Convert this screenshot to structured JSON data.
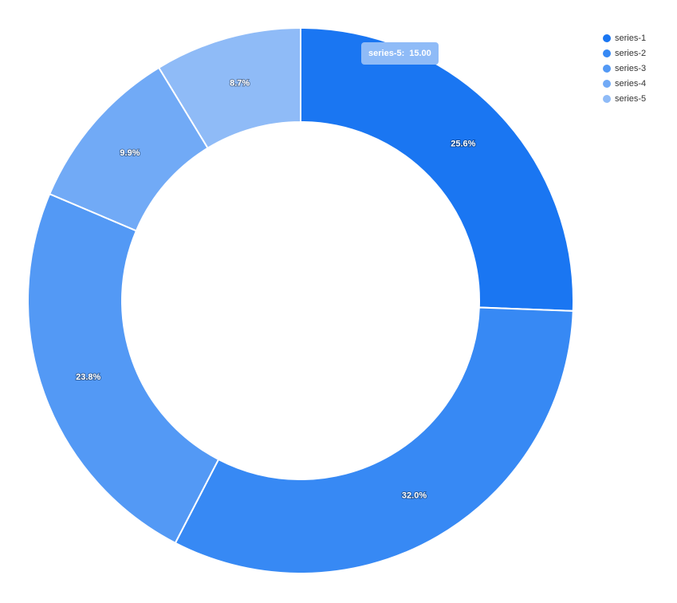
{
  "chart_data": {
    "type": "pie",
    "variant": "donut",
    "title": "",
    "series": [
      {
        "name": "series-1",
        "value": 25.6,
        "label": "25.6%",
        "color": "#1a76f2"
      },
      {
        "name": "series-2",
        "value": 32.0,
        "label": "32.0%",
        "color": "#3789f4"
      },
      {
        "name": "series-3",
        "value": 23.8,
        "label": "23.8%",
        "color": "#5399f5"
      },
      {
        "name": "series-4",
        "value": 9.9,
        "label": "9.9%",
        "color": "#71aaf6"
      },
      {
        "name": "series-5",
        "value": 8.7,
        "label": "8.7%",
        "color": "#8fbbf7"
      }
    ],
    "legend_position": "top-right",
    "tooltip": {
      "series": "series-5:",
      "value": "15.00"
    }
  }
}
